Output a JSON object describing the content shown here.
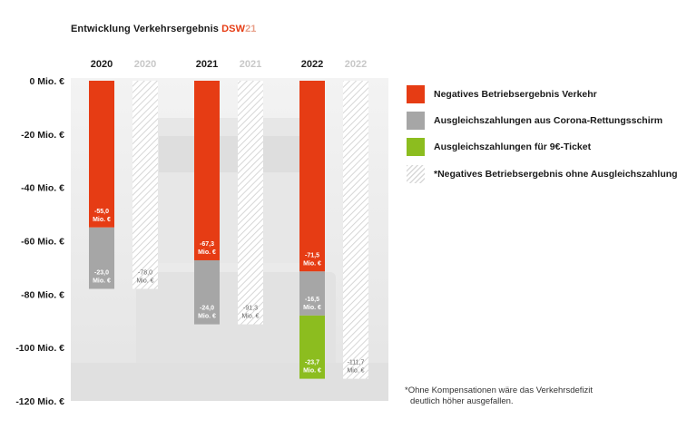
{
  "title": {
    "main": "Entwicklung Verkehrsergebnis ",
    "brand_a": "DSW",
    "brand_b": "21"
  },
  "chart_data": {
    "type": "bar",
    "stacked": true,
    "ylim": [
      -120,
      0
    ],
    "y_ticks": [
      {
        "value": 0,
        "label": "0 Mio. €"
      },
      {
        "value": -20,
        "label": "-20 Mio. €"
      },
      {
        "value": -40,
        "label": "-40 Mio. €"
      },
      {
        "value": -60,
        "label": "-60 Mio. €"
      },
      {
        "value": -80,
        "label": "-80 Mio. €"
      },
      {
        "value": -100,
        "label": "-100 Mio. €"
      },
      {
        "value": -120,
        "label": "-120 Mio. €"
      }
    ],
    "columns": [
      {
        "label": "2020",
        "ghost": false,
        "segments": [
          {
            "series": "red",
            "value": -55.0,
            "label1": "-55,0",
            "label2": "Mio. €"
          },
          {
            "series": "grey",
            "value": -23.0,
            "label1": "-23,0",
            "label2": "Mio. €"
          }
        ]
      },
      {
        "label": "2020",
        "ghost": true,
        "segments": [
          {
            "series": "hatch",
            "value": -78.0,
            "label1": "-78,0",
            "label2": "Mio. €"
          }
        ]
      },
      {
        "label": "2021",
        "ghost": false,
        "segments": [
          {
            "series": "red",
            "value": -67.3,
            "label1": "-67,3",
            "label2": "Mio. €"
          },
          {
            "series": "grey",
            "value": -24.0,
            "label1": "-24,0",
            "label2": "Mio. €"
          }
        ]
      },
      {
        "label": "2021",
        "ghost": true,
        "segments": [
          {
            "series": "hatch",
            "value": -91.3,
            "label1": "-91,3",
            "label2": "Mio. €"
          }
        ]
      },
      {
        "label": "2022",
        "ghost": false,
        "segments": [
          {
            "series": "red",
            "value": -71.5,
            "label1": "-71,5",
            "label2": "Mio. €"
          },
          {
            "series": "grey",
            "value": -16.5,
            "label1": "-16,5",
            "label2": "Mio. €"
          },
          {
            "series": "green",
            "value": -23.7,
            "label1": "-23,7",
            "label2": "Mio. €"
          }
        ]
      },
      {
        "label": "2022",
        "ghost": true,
        "segments": [
          {
            "series": "hatch",
            "value": -111.7,
            "label1": "-111,7",
            "label2": "Mio. €"
          }
        ]
      }
    ],
    "legend": [
      {
        "series": "red",
        "label": "Negatives Betriebsergebnis Verkehr"
      },
      {
        "series": "grey",
        "label": "Ausgleichszahlungen aus Corona-Rettungsschirm"
      },
      {
        "series": "green",
        "label": "Ausgleichszahlungen für 9€-Ticket"
      },
      {
        "series": "hatch",
        "label": "*Negatives  Betriebsergebnis ohne Ausgleichszahlungen"
      }
    ],
    "legend_position": "right",
    "colors": {
      "red": "#e63c14",
      "grey": "#a6a6a6",
      "green": "#8cbd1f",
      "hatch": "#d8d8d8"
    },
    "grid": false
  },
  "footnote": {
    "line1": "*Ohne Kompensationen wäre das Verkehrsdefizit",
    "line2": "deutlich höher ausgefallen."
  }
}
